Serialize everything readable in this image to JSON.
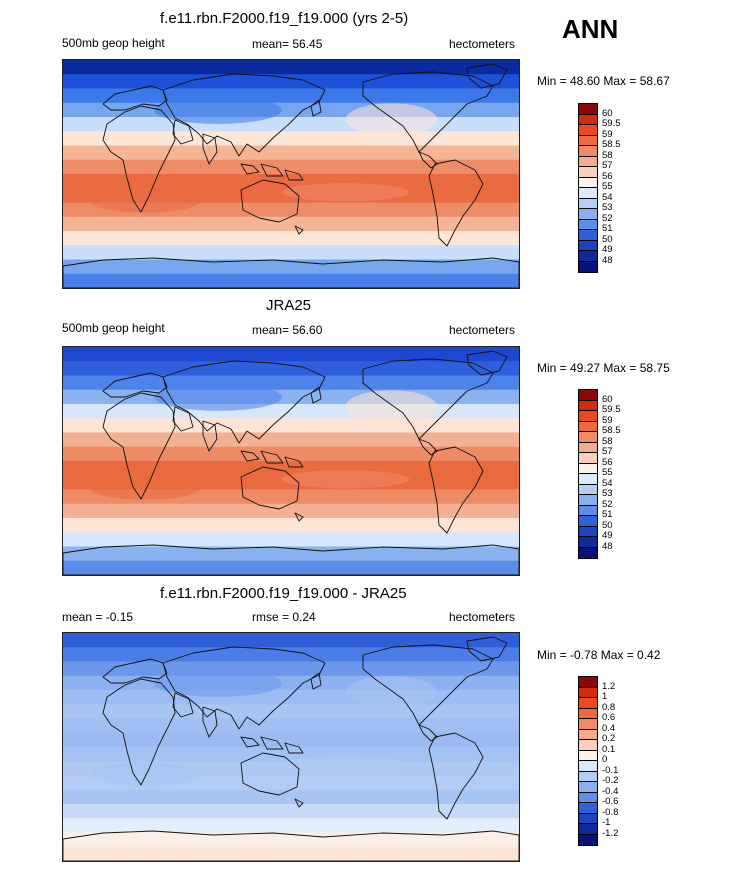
{
  "header": {
    "season": "ANN"
  },
  "panels": [
    {
      "title": "f.e11.rbn.F2000.f19_f19.000 (yrs 2-5)",
      "left_label": "500mb geop height",
      "center_label": "mean=  56.45",
      "right_label": "hectometers",
      "minmax": "Min =  48.60 Max =  58.67",
      "bands": [
        {
          "color": "#0a2a9e"
        },
        {
          "color": "#1e50d8"
        },
        {
          "color": "#3c78e8"
        },
        {
          "color": "#78a6ee"
        },
        {
          "color": "#c9defa"
        },
        {
          "color": "#fde6d8"
        },
        {
          "color": "#f4b496"
        },
        {
          "color": "#ee8c68"
        },
        {
          "color": "#ea6a42"
        },
        {
          "color": "#ea6a42"
        },
        {
          "color": "#ee8c68"
        },
        {
          "color": "#f4b496"
        },
        {
          "color": "#fde6d8"
        },
        {
          "color": "#c9defa"
        },
        {
          "color": "#78a6ee"
        },
        {
          "color": "#4a80ea"
        }
      ],
      "colorbar": {
        "colors": [
          "#8c0808",
          "#d42b10",
          "#ea4a22",
          "#ef6a42",
          "#f28a66",
          "#f6ab8c",
          "#fad0bc",
          "#fdf3ec",
          "#dce9fb",
          "#b4cef6",
          "#8ab0f0",
          "#5c8ee8",
          "#2f62d8",
          "#1a44c0",
          "#0f2a9c",
          "#07137a"
        ],
        "labels": [
          "60",
          "59.5",
          "59",
          "58.5",
          "58",
          "57",
          "56",
          "55",
          "54",
          "53",
          "52",
          "51",
          "50",
          "49",
          "48"
        ]
      }
    },
    {
      "title": "JRA25",
      "left_label": "500mb geop height",
      "center_label": "mean=  56.60",
      "right_label": "hectometers",
      "minmax": "Min =  49.27 Max =  58.75",
      "bands": [
        {
          "color": "#1e48d0"
        },
        {
          "color": "#2e60de"
        },
        {
          "color": "#4c84ea"
        },
        {
          "color": "#8ab2f0"
        },
        {
          "color": "#d8e6fb"
        },
        {
          "color": "#fde4d6"
        },
        {
          "color": "#f4b092"
        },
        {
          "color": "#ee8a64"
        },
        {
          "color": "#ea6a40"
        },
        {
          "color": "#ea6a40"
        },
        {
          "color": "#ee8a64"
        },
        {
          "color": "#f4b092"
        },
        {
          "color": "#fde4d6"
        },
        {
          "color": "#d8e6fb"
        },
        {
          "color": "#8ab2f0"
        },
        {
          "color": "#5a8ceb"
        }
      ],
      "colorbar": {
        "colors": [
          "#8c0808",
          "#d42b10",
          "#ea4a22",
          "#ef6a42",
          "#f28a66",
          "#f6ab8c",
          "#fad0bc",
          "#fdf3ec",
          "#dce9fb",
          "#b4cef6",
          "#8ab0f0",
          "#5c8ee8",
          "#2f62d8",
          "#1a44c0",
          "#0f2a9c",
          "#07137a"
        ],
        "labels": [
          "60",
          "59.5",
          "59",
          "58.5",
          "58",
          "57",
          "56",
          "55",
          "54",
          "53",
          "52",
          "51",
          "50",
          "49",
          "48"
        ]
      }
    },
    {
      "title": "f.e11.rbn.F2000.f19_f19.000 - JRA25",
      "left_label": "mean =  -0.15",
      "center_label": "rmse =   0.24",
      "right_label": "hectometers",
      "minmax": "Min =  -0.78 Max =   0.42",
      "bands": [
        {
          "color": "#2f5fd8"
        },
        {
          "color": "#4a7de6"
        },
        {
          "color": "#6c98ec"
        },
        {
          "color": "#8cb0f0"
        },
        {
          "color": "#9cbcf2"
        },
        {
          "color": "#a8c4f3"
        },
        {
          "color": "#a0bef2"
        },
        {
          "color": "#9cbaf1"
        },
        {
          "color": "#a4c2f3"
        },
        {
          "color": "#aec8f4"
        },
        {
          "color": "#b4ccf5"
        },
        {
          "color": "#a8c4f3"
        },
        {
          "color": "#c6daf8"
        },
        {
          "color": "#e4edfb"
        },
        {
          "color": "#fbeee4"
        },
        {
          "color": "#fde6d8"
        }
      ],
      "colorbar": {
        "colors": [
          "#8c0808",
          "#d42b10",
          "#ea4a22",
          "#ef6a42",
          "#f28a66",
          "#f6ab8c",
          "#fad0bc",
          "#fdf3ec",
          "#dce9fb",
          "#b4cef6",
          "#8ab0f0",
          "#5c8ee8",
          "#2f62d8",
          "#1a44c0",
          "#0f2a9c",
          "#07137a"
        ],
        "labels": [
          "1.2",
          "1",
          "0.8",
          "0.6",
          "0.4",
          "0.2",
          "0.1",
          "0",
          "-0.1",
          "-0.2",
          "-0.4",
          "-0.6",
          "-0.8",
          "-1",
          "-1.2"
        ]
      }
    }
  ]
}
